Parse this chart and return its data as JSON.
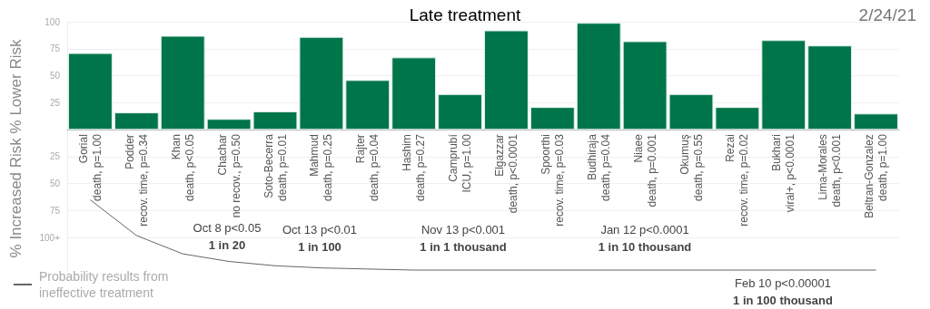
{
  "chart_data": {
    "type": "bar",
    "title": "Late treatment",
    "subtitle": "2/24/21",
    "ylabel": "% Increased Risk % Lower Risk",
    "categories": [
      "Gorial\ndeath, p=1.00",
      "Podder\nrecov. time, p=0.34",
      "Khan\ndeath, p<0.05",
      "Chachar\nno recov., p=0.50",
      "Soto-Becerra\ndeath, p=0.01",
      "Mahmud\ndeath, p=0.25",
      "Rajter\ndeath, p=0.04",
      "Hashim\ndeath, p=0.27",
      "Camprubí\nICU, p=1.00",
      "Elgazzar\ndeath, p<0.0001",
      "Spoorthi\nrecov. time, p=0.03",
      "Budhiraja\ndeath, p=0.04",
      "Niaee\ndeath, p=0.001",
      "Okumuş\ndeath, p=0.55",
      "Rezai\nrecov. time, p=0.02",
      "Bukhari\nviral+, p<0.0001",
      "Lima-Morales\ndeath, p<0.001",
      "Beltran-Gonzalez\ndeath, p=1.00"
    ],
    "series": [
      {
        "color": "#00754a",
        "values": [
          71,
          16,
          87,
          10,
          17,
          86,
          46,
          67,
          33,
          92,
          21,
          99,
          82,
          33,
          21,
          83,
          78,
          15
        ]
      },
      {
        "type": "line",
        "name": "Probability results from ineffective treatment",
        "color": "#666666",
        "values": [
          -65,
          -98,
          -115,
          -122,
          -126,
          -128,
          -129,
          -130,
          -130,
          -130,
          -130,
          -130,
          -130,
          -130,
          -130,
          -130,
          -130,
          -130
        ]
      }
    ],
    "ylim": [
      -135,
      100
    ],
    "yticks": [
      100,
      75,
      50,
      25,
      {
        "value": -25,
        "label": "25"
      },
      {
        "value": -50,
        "label": "50"
      },
      {
        "value": -75,
        "label": "75"
      },
      {
        "value": -100,
        "label": "100+"
      }
    ],
    "grid": "y",
    "legend": "bottom left",
    "marker": "none",
    "annotations": [
      "Oct 8 p<0.05\n1 in 20",
      "Oct 13 p<0.01\n1 in 100",
      "Nov 13 p<0.001\n1 in 1 thousand",
      "Jan 12 p<0.0001\n1 in 10 thousand",
      "Feb 10 p<0.00001\n1 in 100 thousand"
    ]
  }
}
